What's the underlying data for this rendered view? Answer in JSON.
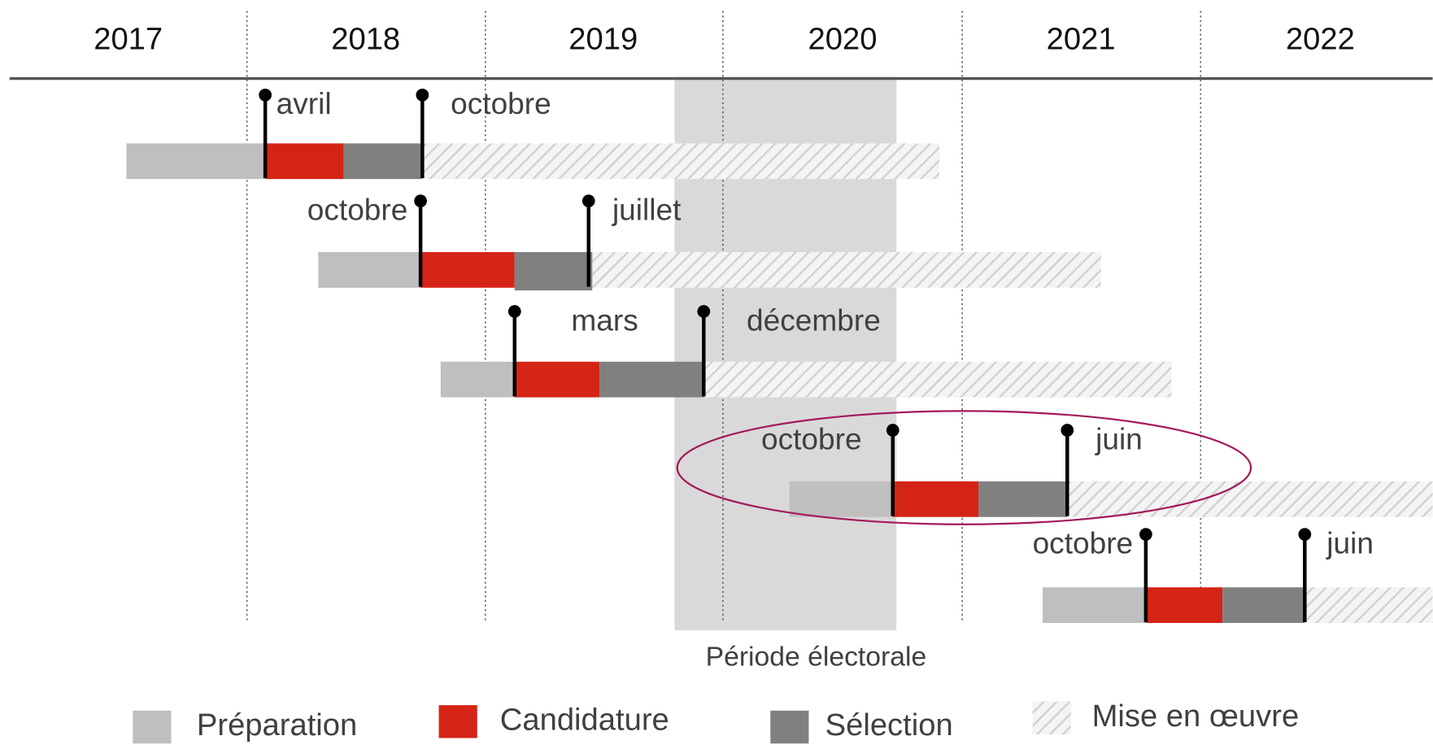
{
  "years": [
    "2017",
    "2018",
    "2019",
    "2020",
    "2021",
    "2022"
  ],
  "rows": [
    {
      "milestones": [
        "avril",
        "octobre"
      ]
    },
    {
      "milestones": [
        "octobre",
        "juillet"
      ]
    },
    {
      "milestones": [
        "mars",
        "décembre"
      ]
    },
    {
      "milestones": [
        "octobre",
        "juin"
      ]
    },
    {
      "milestones": [
        "octobre",
        "juin"
      ]
    }
  ],
  "period_label": "Période électorale",
  "legend": [
    "Préparation",
    "Candidature",
    "Sélection",
    "Mise en œuvre"
  ]
}
